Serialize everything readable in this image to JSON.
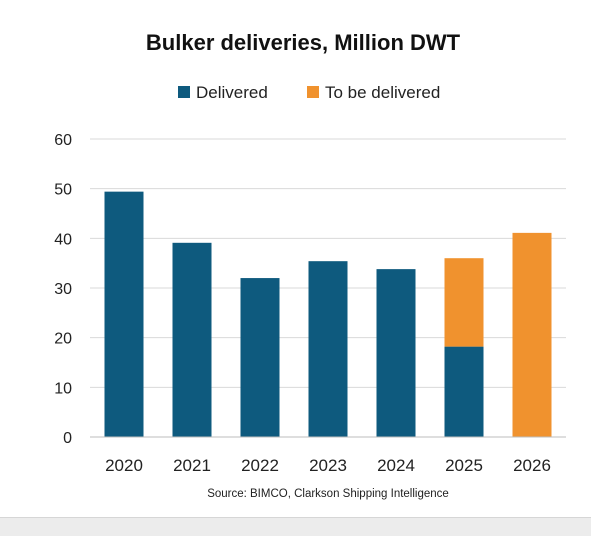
{
  "chart_data": {
    "type": "bar",
    "stacked": true,
    "title": "Bulker deliveries, Million DWT",
    "categories": [
      "2020",
      "2021",
      "2022",
      "2023",
      "2024",
      "2025",
      "2026"
    ],
    "series": [
      {
        "name": "Delivered",
        "color": "#0e5a7e",
        "values": [
          49.4,
          39.1,
          32.0,
          35.4,
          33.8,
          18.2,
          0
        ]
      },
      {
        "name": "To be delivered",
        "color": "#f0922e",
        "values": [
          0,
          0,
          0,
          0,
          0,
          17.8,
          41.1
        ]
      }
    ],
    "ylim": [
      0,
      60
    ],
    "yticks": [
      0,
      10,
      20,
      30,
      40,
      50,
      60
    ],
    "grid": true,
    "legend_position": "top",
    "source": "Source: BIMCO, Clarkson Shipping Intelligence"
  }
}
